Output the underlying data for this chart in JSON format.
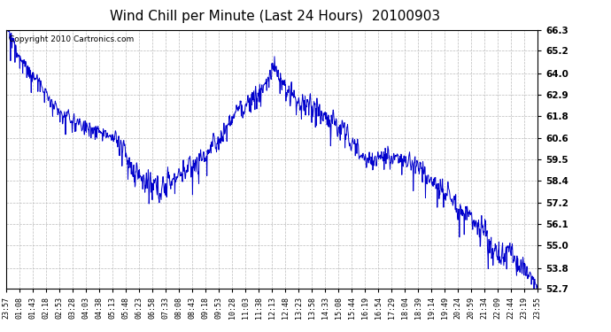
{
  "title": "Wind Chill per Minute (Last 24 Hours)  20100903",
  "copyright_text": "Copyright 2010 Cartronics.com",
  "line_color": "#0000cc",
  "background_color": "#ffffff",
  "grid_color": "#bbbbbb",
  "ylim": [
    52.7,
    66.3
  ],
  "yticks": [
    52.7,
    53.8,
    55.0,
    56.1,
    57.2,
    58.4,
    59.5,
    60.6,
    61.8,
    62.9,
    64.0,
    65.2,
    66.3
  ],
  "x_tick_labels": [
    "23:57",
    "01:08",
    "01:43",
    "02:18",
    "02:53",
    "03:28",
    "04:03",
    "04:38",
    "05:13",
    "05:48",
    "06:23",
    "06:58",
    "07:33",
    "08:08",
    "08:43",
    "09:18",
    "09:53",
    "10:28",
    "11:03",
    "11:38",
    "12:13",
    "12:48",
    "13:23",
    "13:58",
    "14:33",
    "15:08",
    "15:44",
    "16:19",
    "16:54",
    "17:29",
    "18:04",
    "18:39",
    "19:14",
    "19:49",
    "20:24",
    "20:59",
    "21:34",
    "22:09",
    "22:44",
    "23:19",
    "23:55"
  ],
  "n_points": 1441,
  "title_fontsize": 11,
  "tick_fontsize": 7.5,
  "xtick_fontsize": 6.0,
  "copyright_fontsize": 6.5,
  "line_width": 0.7
}
